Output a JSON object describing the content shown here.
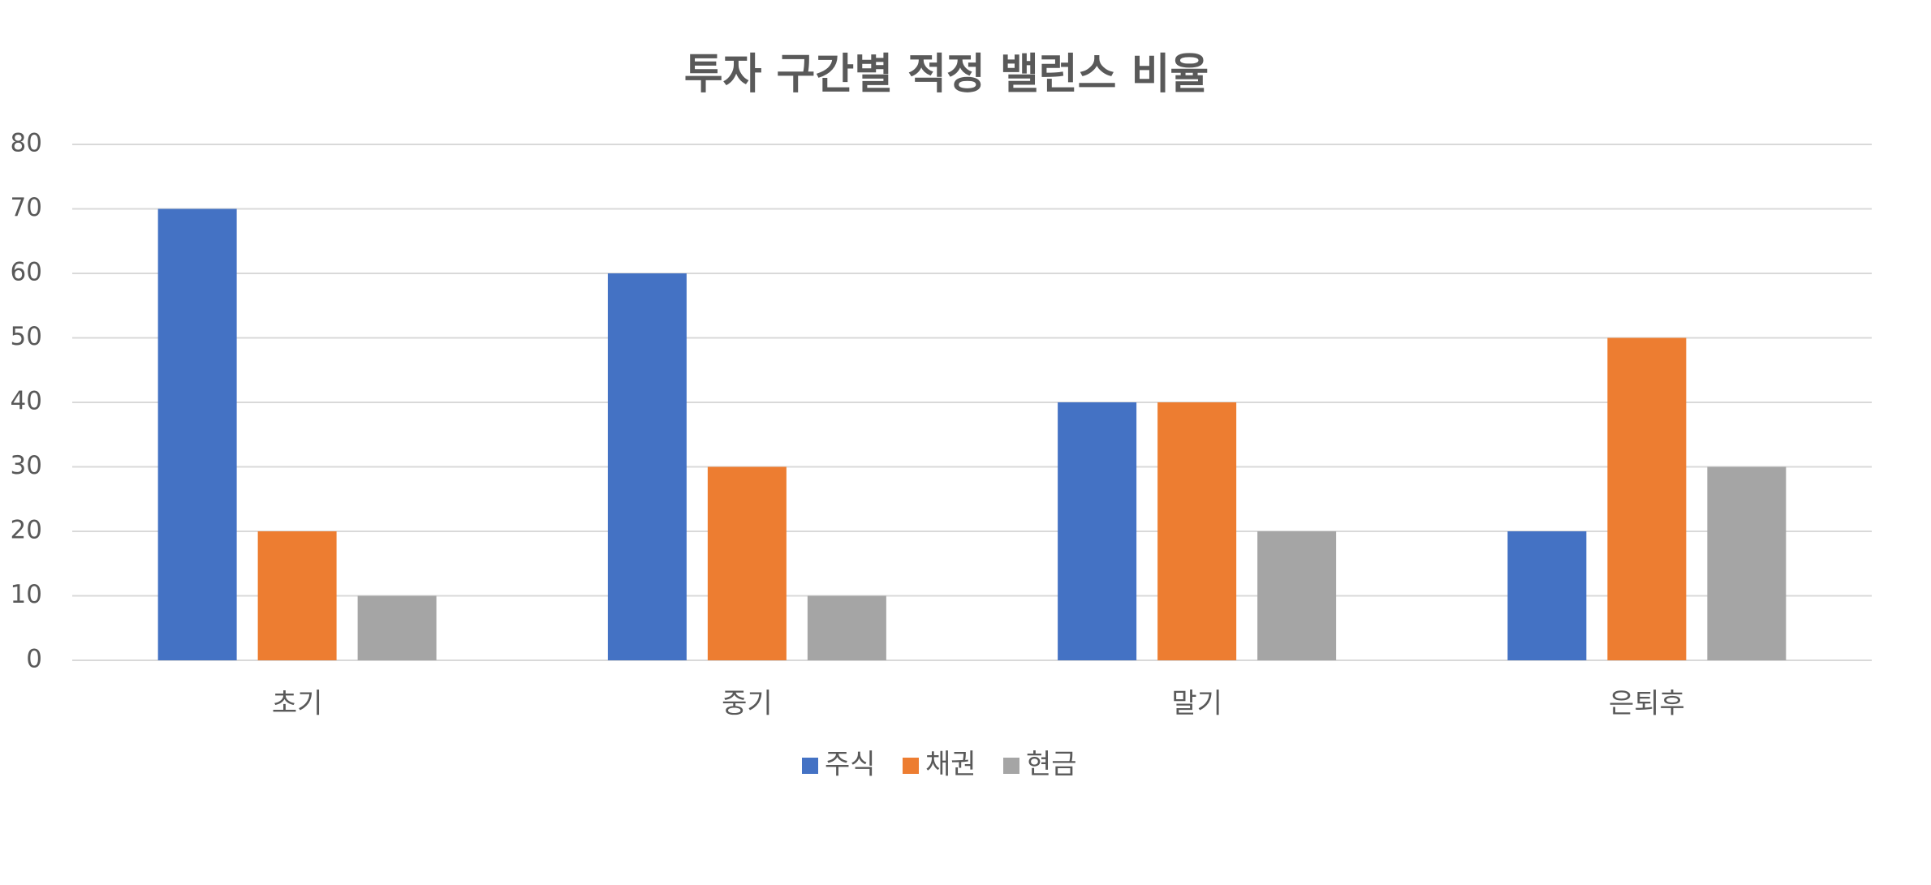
{
  "chart_data": {
    "type": "bar",
    "title": "투자 구간별 적정 밸런스 비율",
    "categories": [
      "초기",
      "중기",
      "말기",
      "은퇴후"
    ],
    "series": [
      {
        "name": "주식",
        "color": "#4472c4",
        "values": [
          70,
          60,
          40,
          20
        ]
      },
      {
        "name": "채권",
        "color": "#ed7d31",
        "values": [
          20,
          30,
          40,
          50
        ]
      },
      {
        "name": "현금",
        "color": "#a5a5a5",
        "values": [
          10,
          10,
          20,
          30
        ]
      }
    ],
    "ylim": [
      0,
      80
    ],
    "yticks": [
      0,
      10,
      20,
      30,
      40,
      50,
      60,
      70,
      80
    ],
    "grid": true,
    "legend": "bottom"
  }
}
